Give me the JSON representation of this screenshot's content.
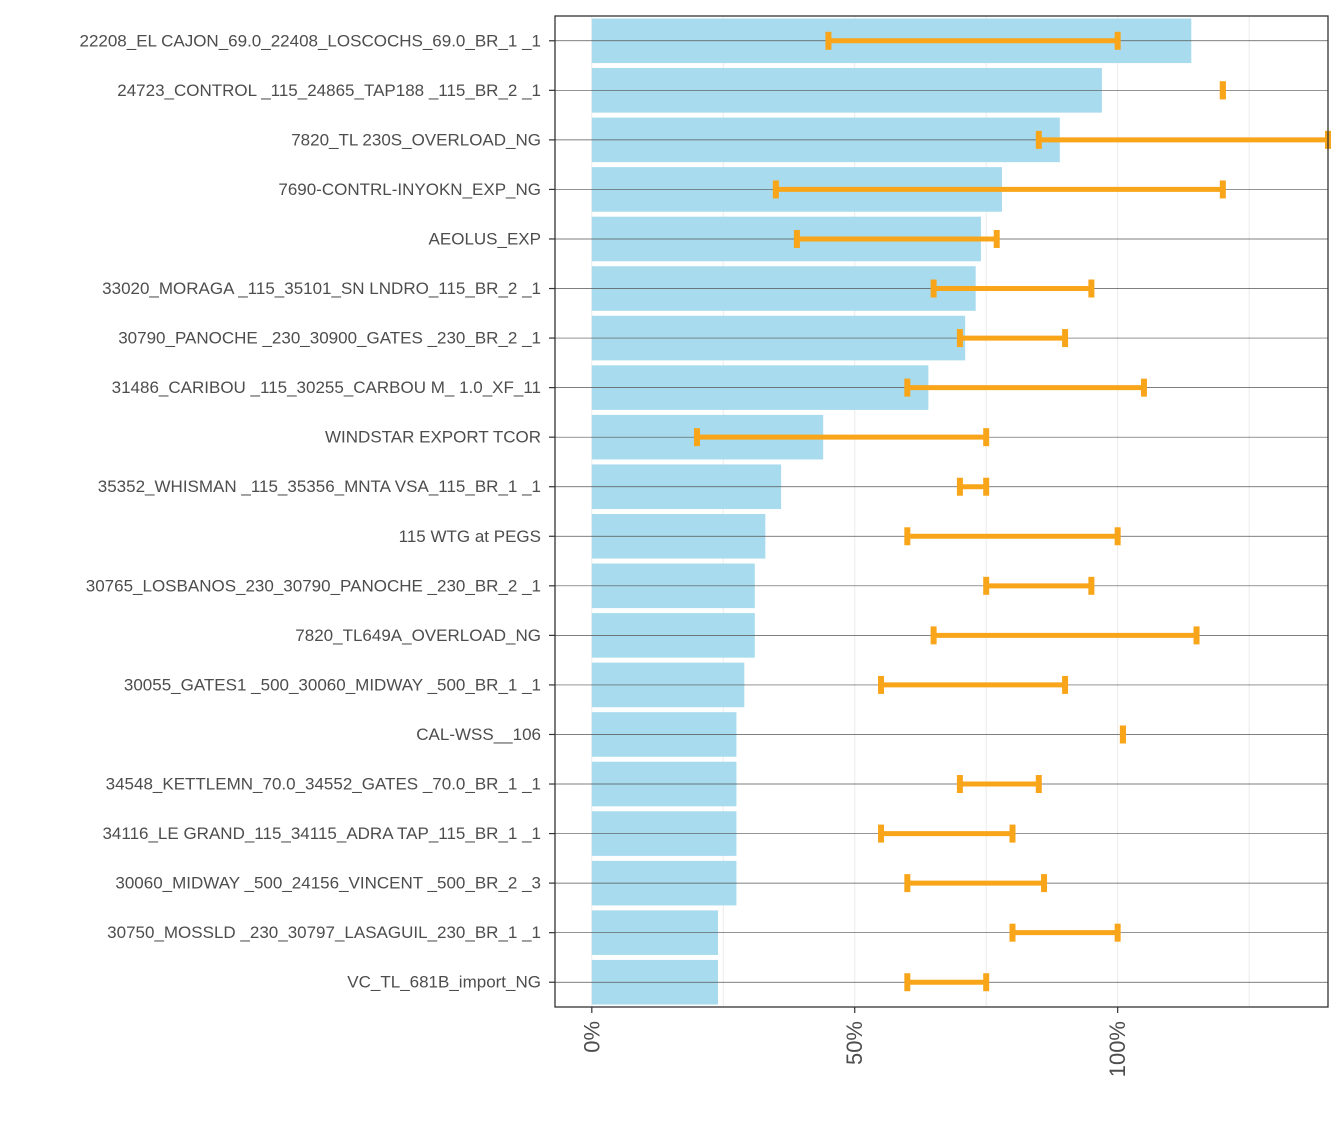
{
  "chart_data": {
    "type": "bar",
    "orientation": "horizontal",
    "title": "",
    "xlabel": "",
    "ylabel": "",
    "xlim": [
      -7,
      140
    ],
    "grid": true,
    "legend": "none",
    "colors": {
      "bar": "#a8dbee",
      "range": "#f9a51a",
      "frame": "#333333",
      "grid": "#ebebeb"
    },
    "x_ticks": [
      {
        "value": 0,
        "label": "0%"
      },
      {
        "value": 50,
        "label": "50%"
      },
      {
        "value": 100,
        "label": "100%"
      }
    ],
    "categories": [
      "22208_EL CAJON_69.0_22408_LOSCOCHS_69.0_BR_1 _1",
      "24723_CONTROL _115_24865_TAP188 _115_BR_2 _1",
      "7820_TL 230S_OVERLOAD_NG",
      "7690-CONTRL-INYOKN_EXP_NG",
      "AEOLUS_EXP",
      "33020_MORAGA _115_35101_SN LNDRO_115_BR_2 _1",
      "30790_PANOCHE _230_30900_GATES _230_BR_2 _1",
      "31486_CARIBOU _115_30255_CARBOU M_ 1.0_XF_11",
      "WINDSTAR EXPORT TCOR",
      "35352_WHISMAN _115_35356_MNTA VSA_115_BR_1 _1",
      "115 WTG at PEGS",
      "30765_LOSBANOS_230_30790_PANOCHE _230_BR_2 _1",
      "7820_TL649A_OVERLOAD_NG",
      "30055_GATES1 _500_30060_MIDWAY _500_BR_1 _1",
      "CAL-WSS__106",
      "34548_KETTLEMN_70.0_34552_GATES _70.0_BR_1 _1",
      "34116_LE GRAND_115_34115_ADRA TAP_115_BR_1 _1",
      "30060_MIDWAY _500_24156_VINCENT _500_BR_2 _3",
      "30750_MOSSLD _230_30797_LASAGUIL_230_BR_1 _1",
      "VC_TL_681B_import_NG"
    ],
    "series": [
      {
        "name": "bar",
        "values": [
          114,
          97,
          89,
          78,
          74,
          73,
          71,
          64,
          44,
          36,
          33,
          31,
          31,
          29,
          27.5,
          27.5,
          27.5,
          27.5,
          24,
          24
        ]
      },
      {
        "name": "range_low",
        "values": [
          45,
          120,
          85,
          35,
          39,
          65,
          70,
          60,
          20,
          70,
          60,
          75,
          65,
          55,
          101,
          70,
          55,
          60,
          80,
          60
        ]
      },
      {
        "name": "range_high",
        "values": [
          100,
          120,
          140,
          120,
          77,
          95,
          90,
          105,
          75,
          75,
          100,
          95,
          115,
          90,
          101,
          85,
          80,
          86,
          100,
          75
        ]
      }
    ]
  }
}
